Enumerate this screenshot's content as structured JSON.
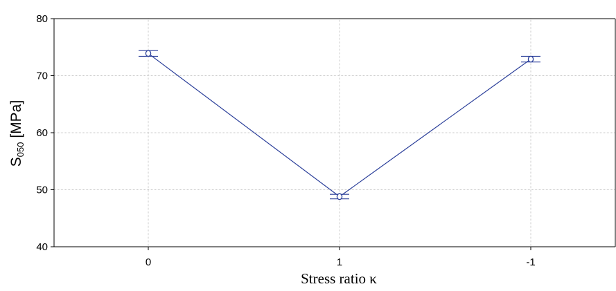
{
  "chart_data": {
    "type": "line",
    "categories": [
      "0",
      "1",
      "-1"
    ],
    "series": [
      {
        "values": [
          73.9,
          48.8,
          72.9
        ],
        "error_low": [
          73.4,
          48.4,
          72.4
        ],
        "error_high": [
          74.4,
          49.2,
          73.4
        ]
      }
    ],
    "ylabel": {
      "main": "S",
      "sub": "050",
      "unit": " [MPa]"
    },
    "xlabel": "Stress ratio κ",
    "ylim": [
      40,
      80
    ],
    "yticks": [
      "40",
      "50",
      "60",
      "70",
      "80"
    ],
    "grid": true,
    "colors": {
      "series": "#2b3f9a",
      "grid": "#c8c8c8",
      "axis": "#000000"
    }
  }
}
